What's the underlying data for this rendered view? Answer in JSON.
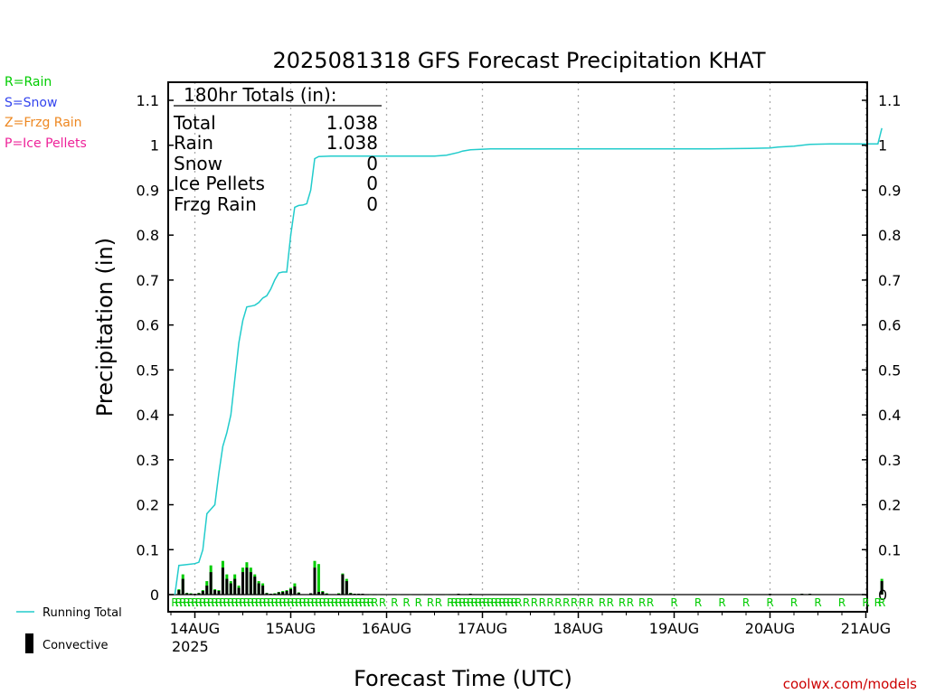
{
  "colors": {
    "rain": "#00cc00",
    "snow": "#3344ee",
    "frzg_rain": "#ee8822",
    "ice_pellets": "#ee2299",
    "running_total": "#22cccc",
    "convective": "#000000",
    "grid": "#aaaaaa",
    "text": "#000000",
    "credit": "#cc0000"
  },
  "legend_types": [
    {
      "label": "R=Rain",
      "color": "#00cc00"
    },
    {
      "label": "S=Snow",
      "color": "#3344ee"
    },
    {
      "label": "Z=Frzg Rain",
      "color": "#ee8822"
    },
    {
      "label": "P=Ice Pellets",
      "color": "#ee2299"
    }
  ],
  "legend_series": {
    "running_total": "Running Total",
    "convective": "Convective"
  },
  "credit": "coolwx.com/models",
  "totals": {
    "heading": "180hr Totals (in):",
    "rows": [
      {
        "label": "Total",
        "value": "1.038"
      },
      {
        "label": "Rain",
        "value": "1.038"
      },
      {
        "label": "Snow",
        "value": "0"
      },
      {
        "label": "Ice Pellets",
        "value": "0"
      },
      {
        "label": "Frzg Rain",
        "value": "0"
      }
    ]
  },
  "chart_data": {
    "type": "bar",
    "title": "2025081318 GFS Forecast Precipitation KHAT",
    "xlabel": "Forecast Time (UTC)",
    "ylabel": "Precipitation (in)",
    "ylim": [
      0,
      1.1
    ],
    "yticks": [
      "0",
      "0.1",
      "0.2",
      "0.3",
      "0.4",
      "0.5",
      "0.6",
      "0.7",
      "0.8",
      "0.9",
      "1",
      "1.1"
    ],
    "xlim_hours": [
      0,
      180
    ],
    "xticks": [
      {
        "hour": 6,
        "label": "14AUG"
      },
      {
        "hour": 30,
        "label": "15AUG"
      },
      {
        "hour": 54,
        "label": "16AUG"
      },
      {
        "hour": 78,
        "label": "17AUG"
      },
      {
        "hour": 102,
        "label": "18AUG"
      },
      {
        "hour": 126,
        "label": "19AUG"
      },
      {
        "hour": 150,
        "label": "20AUG"
      },
      {
        "hour": 174,
        "label": "21AUG"
      }
    ],
    "year_label": "2025",
    "grid": "vertical dotted at day boundaries",
    "series": [
      {
        "name": "Running Total",
        "kind": "line",
        "points": [
          [
            1,
            0.0
          ],
          [
            2,
            0.065
          ],
          [
            3,
            0.066
          ],
          [
            4,
            0.067
          ],
          [
            5,
            0.068
          ],
          [
            6,
            0.069
          ],
          [
            7,
            0.072
          ],
          [
            8,
            0.1
          ],
          [
            9,
            0.18
          ],
          [
            10,
            0.19
          ],
          [
            11,
            0.2
          ],
          [
            12,
            0.27
          ],
          [
            13,
            0.33
          ],
          [
            14,
            0.36
          ],
          [
            15,
            0.4
          ],
          [
            16,
            0.48
          ],
          [
            17,
            0.56
          ],
          [
            18,
            0.61
          ],
          [
            19,
            0.64
          ],
          [
            20,
            0.642
          ],
          [
            21,
            0.644
          ],
          [
            22,
            0.65
          ],
          [
            23,
            0.66
          ],
          [
            24,
            0.665
          ],
          [
            25,
            0.68
          ],
          [
            26,
            0.7
          ],
          [
            27,
            0.716
          ],
          [
            28,
            0.718
          ],
          [
            29,
            0.718
          ],
          [
            30,
            0.8
          ],
          [
            31,
            0.862
          ],
          [
            32,
            0.866
          ],
          [
            33,
            0.867
          ],
          [
            34,
            0.87
          ],
          [
            35,
            0.9
          ],
          [
            36,
            0.97
          ],
          [
            37,
            0.975
          ],
          [
            40,
            0.976
          ],
          [
            60,
            0.976
          ],
          [
            66,
            0.976
          ],
          [
            69,
            0.978
          ],
          [
            72,
            0.984
          ],
          [
            73,
            0.987
          ],
          [
            75,
            0.99
          ],
          [
            80,
            0.992
          ],
          [
            100,
            0.992
          ],
          [
            120,
            0.992
          ],
          [
            135,
            0.992
          ],
          [
            145,
            0.993
          ],
          [
            150,
            0.994
          ],
          [
            152,
            0.996
          ],
          [
            156,
            0.998
          ],
          [
            158,
            1.0
          ],
          [
            160,
            1.002
          ],
          [
            165,
            1.003
          ],
          [
            170,
            1.003
          ],
          [
            176,
            1.003
          ],
          [
            177,
            1.003
          ],
          [
            178,
            1.038
          ]
        ]
      },
      {
        "name": "Rain",
        "kind": "bars",
        "bars": [
          [
            2,
            0.012,
            0.01
          ],
          [
            3,
            0.045,
            0.035
          ],
          [
            4,
            0.004,
            0.003
          ],
          [
            5,
            0.003,
            0.002
          ],
          [
            6,
            0.002,
            0.002
          ],
          [
            7,
            0.004,
            0.003
          ],
          [
            8,
            0.01,
            0.008
          ],
          [
            9,
            0.03,
            0.02
          ],
          [
            10,
            0.065,
            0.05
          ],
          [
            11,
            0.012,
            0.01
          ],
          [
            12,
            0.01,
            0.008
          ],
          [
            13,
            0.075,
            0.06
          ],
          [
            14,
            0.045,
            0.035
          ],
          [
            15,
            0.03,
            0.025
          ],
          [
            16,
            0.045,
            0.035
          ],
          [
            17,
            0.02,
            0.015
          ],
          [
            18,
            0.06,
            0.05
          ],
          [
            19,
            0.072,
            0.06
          ],
          [
            20,
            0.06,
            0.05
          ],
          [
            21,
            0.045,
            0.04
          ],
          [
            22,
            0.03,
            0.025
          ],
          [
            23,
            0.025,
            0.02
          ],
          [
            24,
            0.004,
            0.003
          ],
          [
            25,
            0.002,
            0.002
          ],
          [
            26,
            0.003,
            0.002
          ],
          [
            27,
            0.006,
            0.005
          ],
          [
            28,
            0.008,
            0.006
          ],
          [
            29,
            0.01,
            0.008
          ],
          [
            30,
            0.015,
            0.012
          ],
          [
            31,
            0.025,
            0.018
          ],
          [
            32,
            0.005,
            0.004
          ],
          [
            35,
            0.003,
            0.003
          ],
          [
            36,
            0.075,
            0.06
          ],
          [
            37,
            0.068,
            0.006
          ],
          [
            38,
            0.008,
            0.006
          ],
          [
            39,
            0.003,
            0.002
          ],
          [
            42,
            0.003,
            0.002
          ],
          [
            43,
            0.047,
            0.045
          ],
          [
            44,
            0.035,
            0.03
          ],
          [
            45,
            0.004,
            0.003
          ],
          [
            46,
            0.002,
            0.002
          ],
          [
            47,
            0.002,
            0.002
          ],
          [
            48,
            0.002,
            0.002
          ],
          [
            50,
            0.001,
            0.001
          ],
          [
            52,
            0.001,
            0.001
          ],
          [
            54,
            0.001,
            0.001
          ],
          [
            57,
            0.001,
            0.001
          ],
          [
            60,
            0.001,
            0.001
          ],
          [
            63,
            0.001,
            0.001
          ],
          [
            66,
            0.001,
            0.001
          ],
          [
            69,
            0.001,
            0.001
          ],
          [
            72,
            0.002,
            0.002
          ],
          [
            75,
            0.002,
            0.002
          ],
          [
            150,
            0.002,
            0.002
          ],
          [
            158,
            0.002,
            0.002
          ],
          [
            160,
            0.002,
            0.002
          ],
          [
            178,
            0.035,
            0.03
          ]
        ]
      }
    ],
    "type_marker_hours": [
      1,
      2,
      3,
      4,
      5,
      6,
      7,
      8,
      9,
      10,
      11,
      12,
      13,
      14,
      15,
      16,
      17,
      18,
      19,
      20,
      21,
      22,
      23,
      24,
      25,
      26,
      27,
      28,
      29,
      30,
      31,
      32,
      33,
      34,
      35,
      36,
      37,
      38,
      39,
      40,
      41,
      42,
      43,
      44,
      45,
      46,
      47,
      48,
      49,
      50,
      51,
      53,
      56,
      59,
      62,
      65,
      67,
      70,
      71,
      72,
      73,
      74,
      75,
      76,
      77,
      78,
      79,
      80,
      81,
      82,
      83,
      84,
      85,
      86,
      87,
      89,
      91,
      93,
      95,
      97,
      99,
      101,
      103,
      105,
      108,
      110,
      113,
      115,
      118,
      120,
      126,
      132,
      138,
      144,
      150,
      156,
      162,
      168,
      174,
      177,
      178
    ],
    "type_marker_label": "R"
  }
}
